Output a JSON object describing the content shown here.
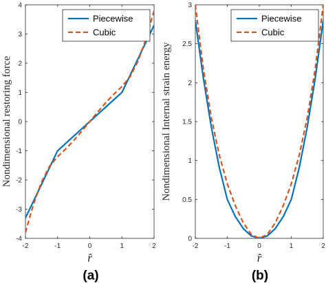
{
  "chart_data": [
    {
      "type": "line",
      "panel_label": "(a)",
      "xlabel": "r̂",
      "ylabel": "Nondimensional restoring force",
      "xlim": [
        -2,
        2
      ],
      "ylim": [
        -4,
        4
      ],
      "xticks": [
        "-2",
        "-1",
        "0",
        "1",
        "2"
      ],
      "yticks": [
        "-4",
        "-3",
        "-2",
        "-1",
        "0",
        "1",
        "2",
        "3",
        "4"
      ],
      "legend_position": "top-right",
      "series": [
        {
          "name": "Piecewise",
          "style": "solid",
          "color": "#0072BD",
          "x": [
            -2,
            -1,
            0,
            1,
            2
          ],
          "y": [
            -3.3,
            -1,
            0,
            1,
            3.3
          ]
        },
        {
          "name": "Cubic",
          "style": "dashed",
          "color": "#D95319",
          "x": [
            -2,
            -1.75,
            -1.5,
            -1.25,
            -1,
            -0.75,
            -0.5,
            -0.25,
            0,
            0.25,
            0.5,
            0.75,
            1,
            1.25,
            1.5,
            1.75,
            2
          ],
          "y": [
            -3.8,
            -2.83,
            -2.07,
            -1.53,
            -1.2,
            -0.94,
            -0.65,
            -0.33,
            0,
            0.33,
            0.65,
            0.94,
            1.2,
            1.53,
            2.07,
            2.83,
            3.8
          ]
        }
      ]
    },
    {
      "type": "line",
      "panel_label": "(b)",
      "xlabel": "r̂",
      "ylabel": "Nondimensional Internal strain energy",
      "xlim": [
        -2,
        2
      ],
      "ylim": [
        0,
        3
      ],
      "xticks": [
        "-2",
        "-1",
        "0",
        "1",
        "2"
      ],
      "yticks": [
        "0",
        "0.5",
        "1",
        "1.5",
        "2",
        "2.5",
        "3"
      ],
      "legend_position": "top-right",
      "series": [
        {
          "name": "Piecewise",
          "style": "solid",
          "color": "#0072BD",
          "x": [
            -2,
            -1.75,
            -1.5,
            -1.25,
            -1,
            -0.75,
            -0.5,
            -0.25,
            0,
            0.25,
            0.5,
            0.75,
            1,
            1.25,
            1.5,
            1.75,
            2
          ],
          "y": [
            2.8,
            2.06,
            1.43,
            0.91,
            0.5,
            0.28,
            0.125,
            0.031,
            0,
            0.031,
            0.125,
            0.28,
            0.5,
            0.91,
            1.43,
            2.06,
            2.8
          ]
        },
        {
          "name": "Cubic",
          "style": "dashed",
          "color": "#D95319",
          "x": [
            -2,
            -1.75,
            -1.5,
            -1.25,
            -1,
            -0.75,
            -0.5,
            -0.25,
            0,
            0.25,
            0.5,
            0.75,
            1,
            1.25,
            1.5,
            1.75,
            2
          ],
          "y": [
            3,
            2.18,
            1.55,
            1.07,
            0.7,
            0.42,
            0.2,
            0.05,
            0,
            0.05,
            0.2,
            0.42,
            0.7,
            1.07,
            1.55,
            2.18,
            3
          ]
        }
      ]
    }
  ]
}
